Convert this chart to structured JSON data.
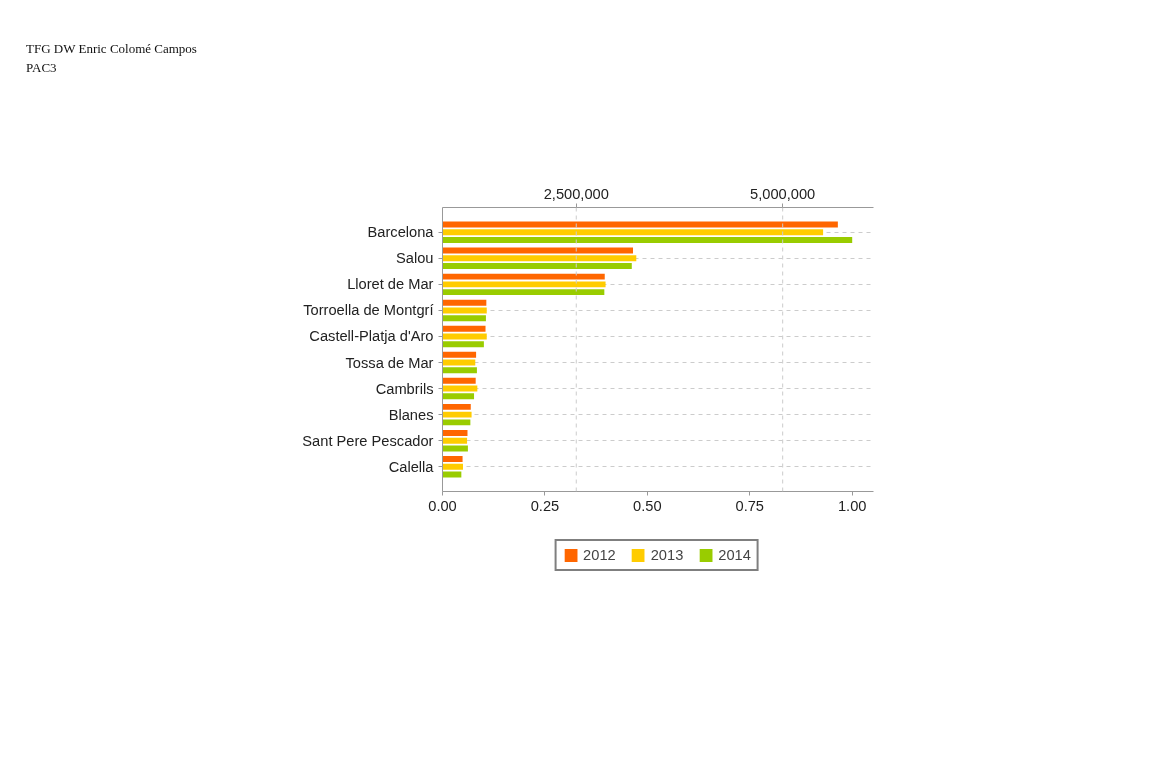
{
  "chart_data": {
    "type": "bar",
    "orientation": "horizontal",
    "title": "TFG DW Enric Colomé Campos",
    "subtitle": "PAC3",
    "categories": [
      "Barcelona",
      "Salou",
      "Lloret de Mar",
      "Torroella de Montgrí",
      "Castell-Platja d'Aro",
      "Tossa de Mar",
      "Cambrils",
      "Blanes",
      "Sant Pere Pescador",
      "Calella"
    ],
    "series": [
      {
        "name": "2012",
        "color": "#ff6600",
        "values": [
          0.965,
          0.465,
          0.396,
          0.107,
          0.105,
          0.082,
          0.081,
          0.069,
          0.061,
          0.049
        ]
      },
      {
        "name": "2013",
        "color": "#ffcc00",
        "values": [
          0.929,
          0.473,
          0.398,
          0.108,
          0.108,
          0.08,
          0.085,
          0.071,
          0.06,
          0.05
        ]
      },
      {
        "name": "2014",
        "color": "#99cc00",
        "values": [
          1.0,
          0.462,
          0.395,
          0.106,
          0.101,
          0.084,
          0.077,
          0.068,
          0.062,
          0.046
        ]
      }
    ],
    "xlim": [
      0,
      1.052
    ],
    "xticks": [
      {
        "value": 0,
        "label": "0.00"
      },
      {
        "value": 0.25,
        "label": "0.25"
      },
      {
        "value": 0.5,
        "label": "0.50"
      },
      {
        "value": 0.75,
        "label": "0.75"
      },
      {
        "value": 1,
        "label": "1.00"
      }
    ],
    "x2lim": [
      880000,
      6100000
    ],
    "x2ticks": [
      {
        "value": 2500000,
        "label": "2,500,000"
      },
      {
        "value": 5000000,
        "label": "5,000,000"
      }
    ],
    "grid": true,
    "legend": "bottom"
  }
}
